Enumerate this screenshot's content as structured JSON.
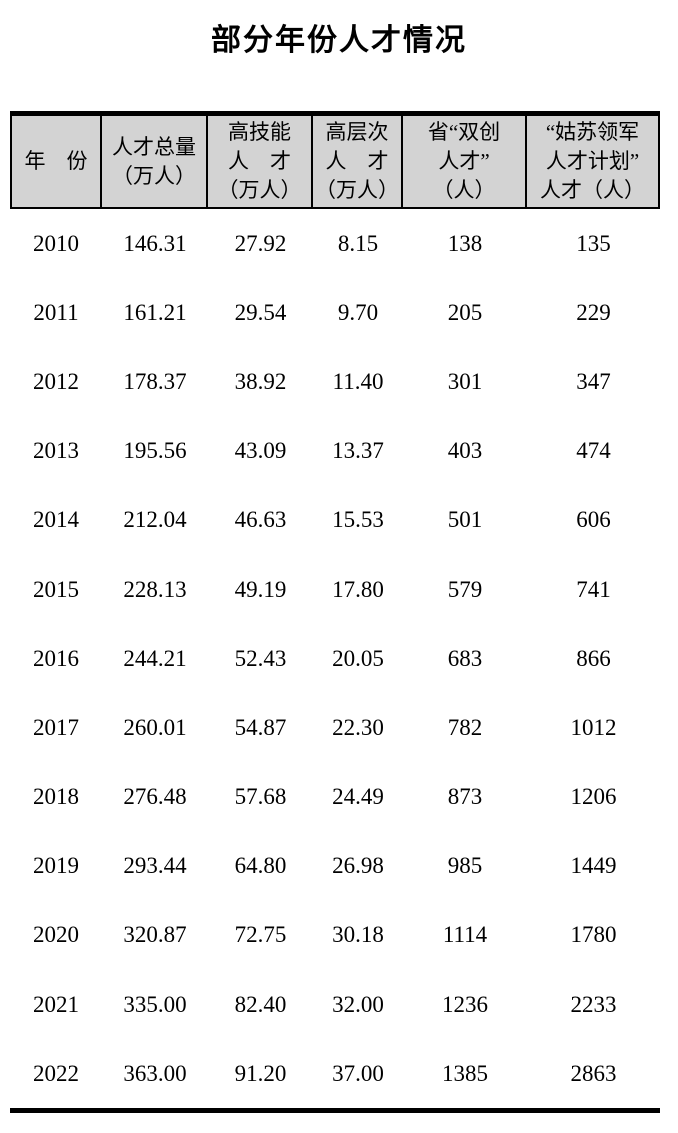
{
  "title": "部分年份人才情况",
  "colors": {
    "header_bg": "#d3d3d3",
    "border": "#000000",
    "text": "#000000",
    "background": "#ffffff"
  },
  "table": {
    "headers": [
      {
        "lines": [
          "年　份"
        ]
      },
      {
        "lines": [
          "人才总量",
          "（万人）"
        ]
      },
      {
        "lines": [
          "高技能",
          "人　才",
          "（万人）"
        ]
      },
      {
        "lines": [
          "高层次",
          "人　才",
          "（万人）"
        ]
      },
      {
        "lines": [
          "省“双创",
          "人才”",
          "（人）"
        ]
      },
      {
        "lines": [
          "“姑苏领军",
          "人才计划”",
          "人才（人）"
        ]
      }
    ],
    "rows": [
      [
        "2010",
        "146.31",
        "27.92",
        "8.15",
        "138",
        "135"
      ],
      [
        "2011",
        "161.21",
        "29.54",
        "9.70",
        "205",
        "229"
      ],
      [
        "2012",
        "178.37",
        "38.92",
        "11.40",
        "301",
        "347"
      ],
      [
        "2013",
        "195.56",
        "43.09",
        "13.37",
        "403",
        "474"
      ],
      [
        "2014",
        "212.04",
        "46.63",
        "15.53",
        "501",
        "606"
      ],
      [
        "2015",
        "228.13",
        "49.19",
        "17.80",
        "579",
        "741"
      ],
      [
        "2016",
        "244.21",
        "52.43",
        "20.05",
        "683",
        "866"
      ],
      [
        "2017",
        "260.01",
        "54.87",
        "22.30",
        "782",
        "1012"
      ],
      [
        "2018",
        "276.48",
        "57.68",
        "24.49",
        "873",
        "1206"
      ],
      [
        "2019",
        "293.44",
        "64.80",
        "26.98",
        "985",
        "1449"
      ],
      [
        "2020",
        "320.87",
        "72.75",
        "30.18",
        "1114",
        "1780"
      ],
      [
        "2021",
        "335.00",
        "82.40",
        "32.00",
        "1236",
        "2233"
      ],
      [
        "2022",
        "363.00",
        "91.20",
        "37.00",
        "1385",
        "2863"
      ]
    ]
  },
  "chart_data": {
    "type": "table",
    "title": "部分年份人才情况",
    "columns": [
      "年份",
      "人才总量（万人）",
      "高技能人才（万人）",
      "高层次人才（万人）",
      "省“双创人才”（人）",
      "“姑苏领军人才计划”人才（人）"
    ],
    "rows": [
      [
        2010,
        146.31,
        27.92,
        8.15,
        138,
        135
      ],
      [
        2011,
        161.21,
        29.54,
        9.7,
        205,
        229
      ],
      [
        2012,
        178.37,
        38.92,
        11.4,
        301,
        347
      ],
      [
        2013,
        195.56,
        43.09,
        13.37,
        403,
        474
      ],
      [
        2014,
        212.04,
        46.63,
        15.53,
        501,
        606
      ],
      [
        2015,
        228.13,
        49.19,
        17.8,
        579,
        741
      ],
      [
        2016,
        244.21,
        52.43,
        20.05,
        683,
        866
      ],
      [
        2017,
        260.01,
        54.87,
        22.3,
        782,
        1012
      ],
      [
        2018,
        276.48,
        57.68,
        24.49,
        873,
        1206
      ],
      [
        2019,
        293.44,
        64.8,
        26.98,
        985,
        1449
      ],
      [
        2020,
        320.87,
        72.75,
        30.18,
        1114,
        1780
      ],
      [
        2021,
        335.0,
        82.4,
        32.0,
        1236,
        2233
      ],
      [
        2022,
        363.0,
        91.2,
        37.0,
        1385,
        2863
      ]
    ]
  }
}
